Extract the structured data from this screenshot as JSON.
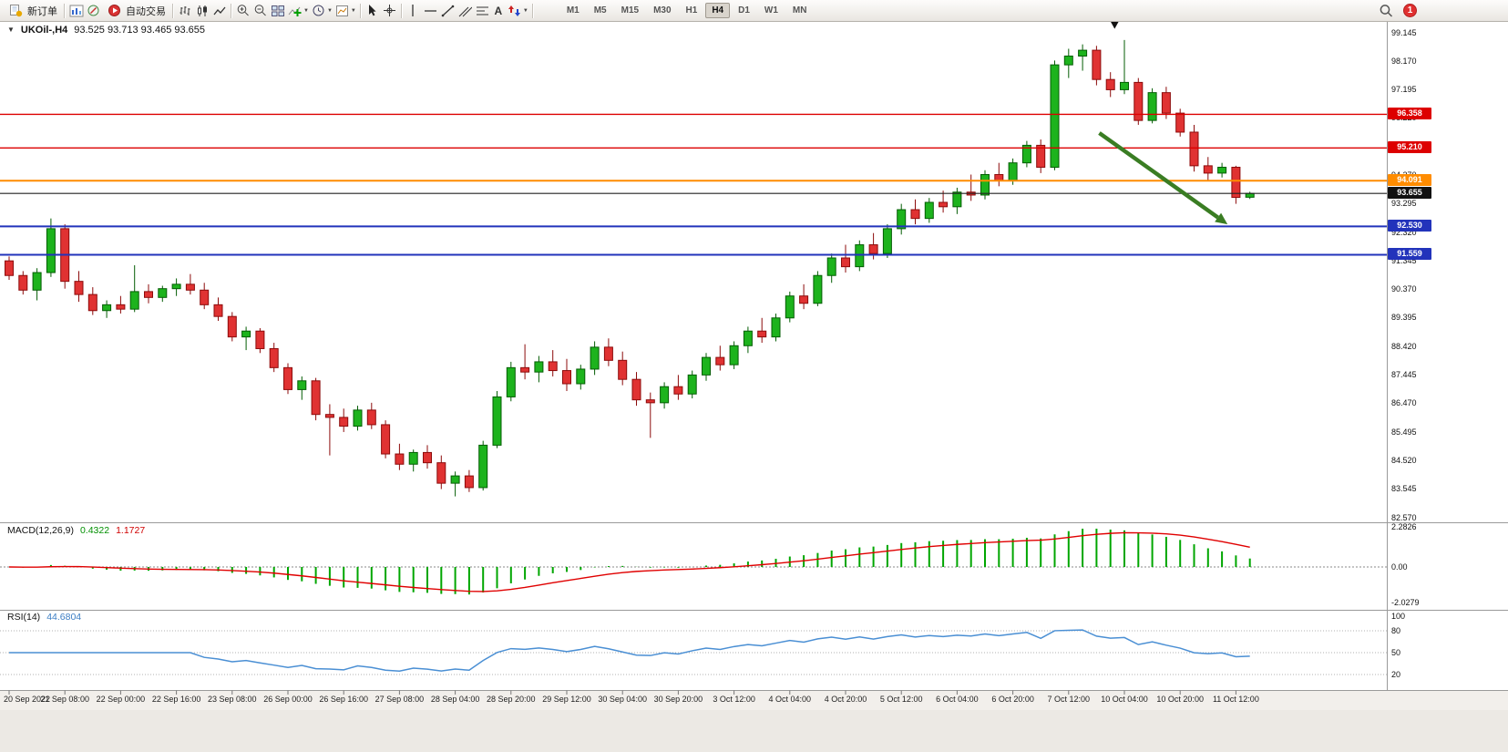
{
  "toolbar": {
    "new_order": "新订单",
    "auto_trading": "自动交易",
    "text_tool": "A",
    "timeframe_labels": [
      "M1",
      "M5",
      "M15",
      "M30",
      "H1",
      "H4",
      "D1",
      "W1",
      "MN"
    ],
    "active_timeframe": "H4",
    "notification_count": "1"
  },
  "chart_header": {
    "symbol_period": "UKOil-,H4",
    "ohlc": "93.525 93.713 93.465 93.655"
  },
  "price_axis": {
    "ticks": [
      "99.145",
      "98.170",
      "97.195",
      "96.220",
      "95.245",
      "94.270",
      "93.295",
      "92.320",
      "91.345",
      "90.370",
      "89.395",
      "88.420",
      "87.445",
      "86.470",
      "85.495",
      "84.520",
      "83.545",
      "82.570"
    ],
    "badges": [
      {
        "value": "96.358",
        "bg": "#dd0000"
      },
      {
        "value": "95.210",
        "bg": "#dd0000"
      },
      {
        "value": "94.091",
        "bg": "#ff8c00"
      },
      {
        "value": "93.655",
        "bg": "#111111"
      },
      {
        "value": "92.530",
        "bg": "#2233bb"
      },
      {
        "value": "91.559",
        "bg": "#2233bb"
      }
    ]
  },
  "macd_panel": {
    "label": "MACD(12,26,9)",
    "main_value": "0.4322",
    "signal_value": "1.1727",
    "axis": [
      "2.2826",
      "0.00",
      "-2.0279"
    ]
  },
  "rsi_panel": {
    "label": "RSI(14)",
    "value": "44.6804",
    "axis": [
      "100",
      "80",
      "50",
      "20"
    ],
    "levels": [
      80,
      50,
      20
    ]
  },
  "time_axis": [
    "20 Sep 2022",
    "21 Sep 08:00",
    "22 Sep 00:00",
    "22 Sep 16:00",
    "23 Sep 08:00",
    "26 Sep 00:00",
    "26 Sep 16:00",
    "27 Sep 08:00",
    "28 Sep 04:00",
    "28 Sep 20:00",
    "29 Sep 12:00",
    "30 Sep 04:00",
    "30 Sep 20:00",
    "3 Oct 12:00",
    "4 Oct 04:00",
    "4 Oct 20:00",
    "5 Oct 12:00",
    "6 Oct 04:00",
    "6 Oct 20:00",
    "7 Oct 12:00",
    "10 Oct 04:00",
    "10 Oct 20:00",
    "11 Oct 12:00"
  ],
  "chart_data": {
    "type": "candlestick",
    "symbol": "UKOil-",
    "period": "H4",
    "price_range": [
      82.57,
      99.145
    ],
    "ticks_every": 4,
    "up_color": "#1db31d",
    "down_color": "#e03232",
    "macd_bar_color": "#00a600",
    "macd_signal_color": "#e00000",
    "rsi_line_color": "#4a8fd4",
    "candles": [
      [
        91.35,
        91.5,
        90.7,
        90.85
      ],
      [
        90.85,
        91.0,
        90.2,
        90.35
      ],
      [
        90.35,
        91.1,
        90.0,
        90.95
      ],
      [
        90.95,
        92.8,
        90.8,
        92.45
      ],
      [
        92.45,
        92.6,
        90.4,
        90.65
      ],
      [
        90.65,
        91.0,
        89.95,
        90.2
      ],
      [
        90.2,
        90.45,
        89.5,
        89.65
      ],
      [
        89.65,
        90.0,
        89.4,
        89.85
      ],
      [
        89.85,
        90.15,
        89.55,
        89.7
      ],
      [
        89.7,
        91.2,
        89.6,
        90.3
      ],
      [
        90.3,
        90.55,
        89.9,
        90.1
      ],
      [
        90.1,
        90.5,
        89.95,
        90.4
      ],
      [
        90.4,
        90.75,
        90.15,
        90.55
      ],
      [
        90.55,
        90.9,
        90.2,
        90.35
      ],
      [
        90.35,
        90.6,
        89.7,
        89.85
      ],
      [
        89.85,
        90.1,
        89.3,
        89.45
      ],
      [
        89.45,
        89.6,
        88.6,
        88.75
      ],
      [
        88.75,
        89.1,
        88.3,
        88.95
      ],
      [
        88.95,
        89.05,
        88.2,
        88.35
      ],
      [
        88.35,
        88.55,
        87.55,
        87.7
      ],
      [
        87.7,
        87.85,
        86.8,
        86.95
      ],
      [
        86.95,
        87.4,
        86.6,
        87.25
      ],
      [
        87.25,
        87.35,
        85.9,
        86.1
      ],
      [
        86.1,
        86.45,
        84.7,
        86.0
      ],
      [
        86.0,
        86.3,
        85.5,
        85.7
      ],
      [
        85.7,
        86.4,
        85.55,
        86.25
      ],
      [
        86.25,
        86.5,
        85.6,
        85.75
      ],
      [
        85.75,
        85.9,
        84.6,
        84.75
      ],
      [
        84.75,
        85.1,
        84.2,
        84.4
      ],
      [
        84.4,
        84.9,
        84.15,
        84.8
      ],
      [
        84.8,
        85.05,
        84.25,
        84.45
      ],
      [
        84.45,
        84.7,
        83.55,
        83.75
      ],
      [
        83.75,
        84.15,
        83.3,
        84.0
      ],
      [
        84.0,
        84.2,
        83.45,
        83.6
      ],
      [
        83.6,
        85.2,
        83.5,
        85.05
      ],
      [
        85.05,
        86.9,
        84.95,
        86.7
      ],
      [
        86.7,
        87.9,
        86.55,
        87.7
      ],
      [
        87.7,
        88.5,
        87.3,
        87.55
      ],
      [
        87.55,
        88.1,
        87.2,
        87.9
      ],
      [
        87.9,
        88.3,
        87.4,
        87.6
      ],
      [
        87.6,
        88.0,
        86.9,
        87.15
      ],
      [
        87.15,
        87.8,
        86.95,
        87.65
      ],
      [
        87.65,
        88.6,
        87.45,
        88.4
      ],
      [
        88.4,
        88.7,
        87.75,
        87.95
      ],
      [
        87.95,
        88.25,
        87.1,
        87.3
      ],
      [
        87.3,
        87.55,
        86.4,
        86.6
      ],
      [
        86.6,
        86.85,
        85.3,
        86.5
      ],
      [
        86.5,
        87.2,
        86.3,
        87.05
      ],
      [
        87.05,
        87.45,
        86.6,
        86.8
      ],
      [
        86.8,
        87.6,
        86.65,
        87.45
      ],
      [
        87.45,
        88.2,
        87.25,
        88.05
      ],
      [
        88.05,
        88.45,
        87.6,
        87.8
      ],
      [
        87.8,
        88.6,
        87.65,
        88.45
      ],
      [
        88.45,
        89.1,
        88.2,
        88.95
      ],
      [
        88.95,
        89.4,
        88.55,
        88.75
      ],
      [
        88.75,
        89.55,
        88.6,
        89.4
      ],
      [
        89.4,
        90.3,
        89.25,
        90.15
      ],
      [
        90.15,
        90.55,
        89.7,
        89.9
      ],
      [
        89.9,
        91.0,
        89.8,
        90.85
      ],
      [
        90.85,
        91.6,
        90.6,
        91.45
      ],
      [
        91.45,
        91.9,
        90.95,
        91.15
      ],
      [
        91.15,
        92.05,
        91.0,
        91.9
      ],
      [
        91.9,
        92.3,
        91.4,
        91.6
      ],
      [
        91.6,
        92.6,
        91.45,
        92.45
      ],
      [
        92.45,
        93.3,
        92.25,
        93.1
      ],
      [
        93.1,
        93.45,
        92.6,
        92.8
      ],
      [
        92.8,
        93.5,
        92.65,
        93.35
      ],
      [
        93.35,
        93.75,
        93.0,
        93.2
      ],
      [
        93.2,
        93.85,
        92.95,
        93.7
      ],
      [
        93.7,
        94.3,
        93.4,
        93.6
      ],
      [
        93.6,
        94.45,
        93.45,
        94.3
      ],
      [
        94.3,
        94.7,
        93.9,
        94.1
      ],
      [
        94.1,
        94.85,
        93.95,
        94.7
      ],
      [
        94.7,
        95.45,
        94.55,
        95.3
      ],
      [
        95.3,
        95.5,
        94.35,
        94.55
      ],
      [
        94.55,
        98.2,
        94.45,
        98.05
      ],
      [
        98.05,
        98.6,
        97.6,
        98.35
      ],
      [
        98.35,
        98.75,
        97.85,
        98.55
      ],
      [
        98.55,
        98.7,
        97.35,
        97.55
      ],
      [
        97.55,
        97.8,
        96.95,
        97.2
      ],
      [
        97.2,
        98.9,
        97.05,
        97.45
      ],
      [
        97.45,
        97.6,
        96.0,
        96.15
      ],
      [
        96.15,
        97.25,
        96.05,
        97.1
      ],
      [
        97.1,
        97.3,
        96.2,
        96.4
      ],
      [
        96.4,
        96.55,
        95.6,
        95.75
      ],
      [
        95.75,
        96.0,
        94.4,
        94.6
      ],
      [
        94.6,
        94.9,
        94.1,
        94.35
      ],
      [
        94.35,
        94.7,
        94.2,
        94.55
      ],
      [
        94.55,
        94.6,
        93.3,
        93.52
      ],
      [
        93.525,
        93.713,
        93.465,
        93.655
      ]
    ],
    "horizontal_lines": [
      {
        "price": 96.358,
        "color": "#dd0000",
        "width": 1.4
      },
      {
        "price": 95.21,
        "color": "#dd0000",
        "width": 1.4
      },
      {
        "price": 94.091,
        "color": "#ff8c00",
        "width": 2
      },
      {
        "price": 92.53,
        "color": "#2233bb",
        "width": 2
      },
      {
        "price": 91.559,
        "color": "#2233bb",
        "width": 2
      }
    ],
    "bid_line": {
      "price": 93.655,
      "color": "#222222"
    },
    "arrow": {
      "from_bar": 78.2,
      "from_price": 95.72,
      "to_bar": 87.4,
      "to_price": 92.6,
      "color": "#3a7d23"
    },
    "top_marker": {
      "bar": 79.3,
      "price": 99.28,
      "color": "#111111"
    }
  }
}
